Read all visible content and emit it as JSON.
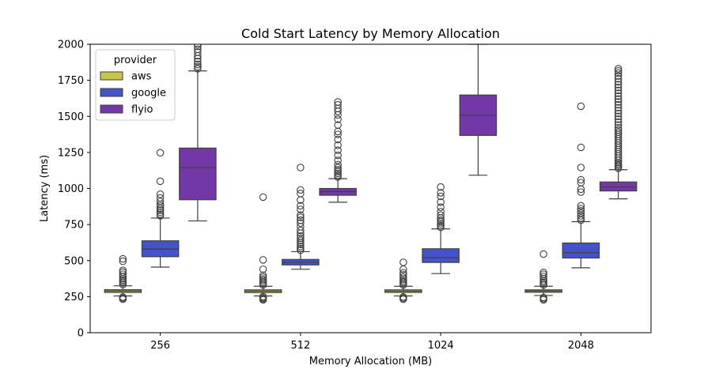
{
  "chart_data": {
    "type": "box",
    "title": "Cold Start Latency by Memory Allocation",
    "xlabel": "Memory Allocation (MB)",
    "ylabel": "Latency (ms)",
    "ylim": [
      0,
      2000
    ],
    "yticks": [
      0,
      250,
      500,
      750,
      1000,
      1250,
      1500,
      1750,
      2000
    ],
    "categories": [
      "256",
      "512",
      "1024",
      "2048"
    ],
    "legend": {
      "title": "provider",
      "placement": "top-left"
    },
    "series": [
      {
        "name": "aws",
        "color": "#c9c44a",
        "boxes": [
          {
            "whisker_low": 255,
            "q1": 279,
            "median": 289,
            "q3": 298,
            "whisker_high": 325,
            "outliers": [
              232,
              240,
              247,
              334,
              345,
              355,
              365,
              375,
              390,
              405,
              420,
              432,
              495,
              512
            ]
          },
          {
            "whisker_low": 255,
            "q1": 278,
            "median": 288,
            "q3": 297,
            "whisker_high": 322,
            "outliers": [
              228,
              235,
              242,
              250,
              330,
              340,
              350,
              362,
              372,
              385,
              398,
              440,
              505,
              940
            ]
          },
          {
            "whisker_low": 255,
            "q1": 279,
            "median": 288,
            "q3": 297,
            "whisker_high": 322,
            "outliers": [
              232,
              240,
              248,
              330,
              340,
              350,
              360,
              372,
              385,
              400,
              415,
              440,
              488
            ]
          },
          {
            "whisker_low": 258,
            "q1": 280,
            "median": 289,
            "q3": 297,
            "whisker_high": 322,
            "outliers": [
              228,
              236,
              244,
              330,
              340,
              350,
              360,
              375,
              390,
              405,
              418,
              545
            ]
          }
        ]
      },
      {
        "name": "google",
        "color": "#4454c8",
        "boxes": [
          {
            "whisker_low": 455,
            "q1": 527,
            "median": 580,
            "q3": 637,
            "whisker_high": 795,
            "outliers": [
              810,
              822,
              835,
              850,
              862,
              878,
              890,
              910,
              935,
              960,
              1050,
              1248
            ]
          },
          {
            "whisker_low": 440,
            "q1": 470,
            "median": 488,
            "q3": 508,
            "whisker_high": 562,
            "outliers": [
              572,
              585,
              598,
              612,
              625,
              640,
              655,
              670,
              690,
              710,
              735,
              760,
              780,
              800,
              815,
              855,
              880,
              920,
              965,
              990,
              1145
            ]
          },
          {
            "whisker_low": 410,
            "q1": 487,
            "median": 520,
            "q3": 582,
            "whisker_high": 720,
            "outliers": [
              730,
              742,
              755,
              768,
              780,
              795,
              815,
              840,
              870,
              905,
              945,
              970,
              1010
            ]
          },
          {
            "whisker_low": 450,
            "q1": 518,
            "median": 555,
            "q3": 622,
            "whisker_high": 770,
            "outliers": [
              780,
              795,
              810,
              828,
              845,
              860,
              880,
              975,
              995,
              1040,
              1060,
              1145,
              1285,
              1570
            ]
          }
        ]
      },
      {
        "name": "flyio",
        "color": "#7238a8",
        "boxes": [
          {
            "whisker_low": 775,
            "q1": 922,
            "median": 1145,
            "q3": 1280,
            "whisker_high": 1815,
            "outliers": [
              1830,
              1845,
              1860,
              1880,
              1900,
              1920,
              1945,
              1965,
              1985,
              2000
            ]
          },
          {
            "whisker_low": 905,
            "q1": 953,
            "median": 978,
            "q3": 1000,
            "whisker_high": 1068,
            "outliers": [
              1080,
              1092,
              1105,
              1118,
              1130,
              1145,
              1165,
              1195,
              1230,
              1265,
              1300,
              1340,
              1375,
              1395,
              1440,
              1480,
              1510,
              1535,
              1555,
              1580,
              1600
            ]
          },
          {
            "whisker_low": 1092,
            "q1": 1368,
            "median": 1508,
            "q3": 1648,
            "whisker_high": 2000,
            "outliers": []
          },
          {
            "whisker_low": 928,
            "q1": 983,
            "median": 1010,
            "q3": 1045,
            "whisker_high": 1130,
            "outliers": [
              1140,
              1150,
              1160,
              1170,
              1180,
              1195,
              1210,
              1225,
              1240,
              1255,
              1270,
              1285,
              1300,
              1315,
              1330,
              1345,
              1360,
              1375,
              1390,
              1405,
              1420,
              1440,
              1460,
              1480,
              1500,
              1520,
              1540,
              1560,
              1580,
              1600,
              1620,
              1640,
              1660,
              1680,
              1700,
              1720,
              1740,
              1760,
              1780,
              1800,
              1815,
              1830
            ]
          }
        ]
      }
    ]
  }
}
